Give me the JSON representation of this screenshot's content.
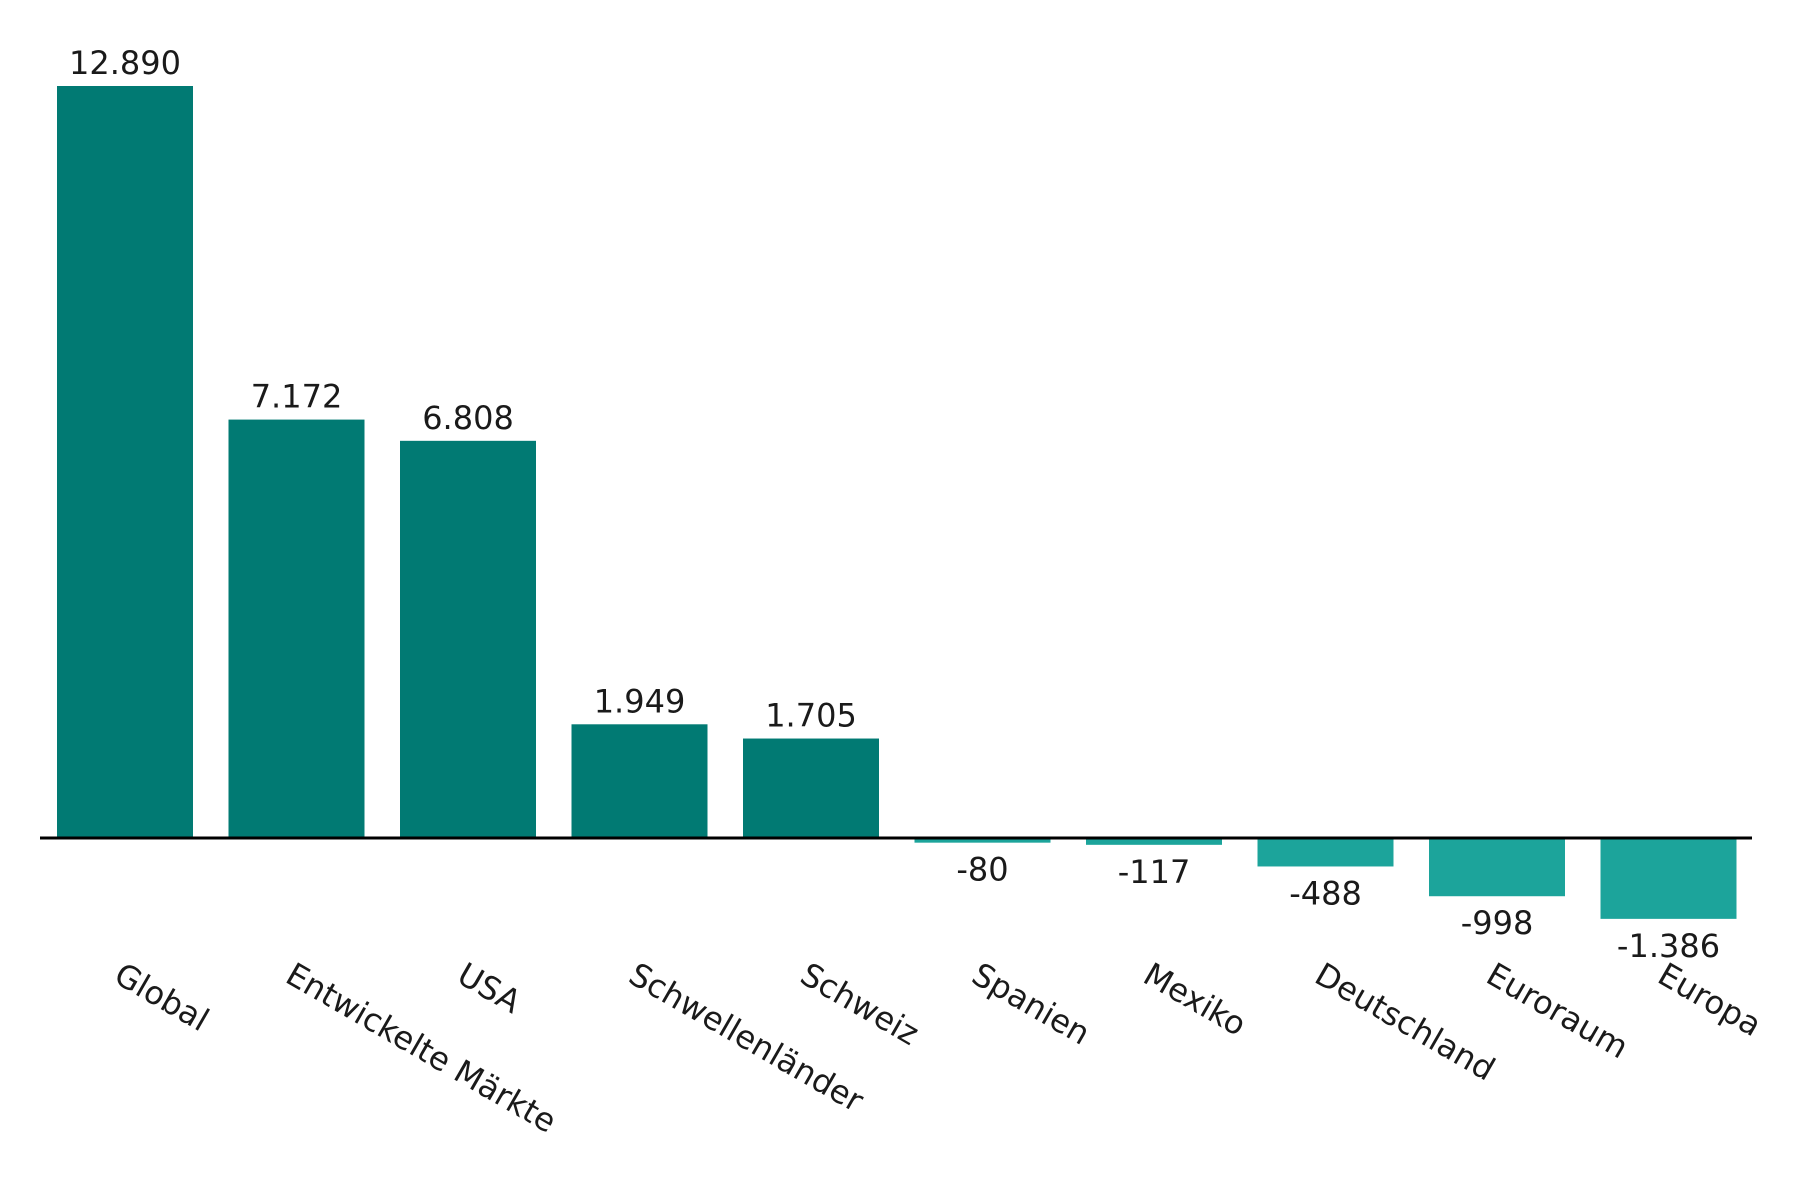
{
  "chart_data": {
    "type": "bar",
    "categories": [
      "Global",
      "Entwickelte Märkte",
      "USA",
      "Schwellenländer",
      "Schweiz",
      "Spanien",
      "Mexiko",
      "Deutschland",
      "Euroraum",
      "Europa"
    ],
    "values": [
      12890,
      7172,
      6808,
      1949,
      1705,
      -80,
      -117,
      -488,
      -998,
      -1386
    ],
    "value_labels": [
      "12.890",
      "7.172",
      "6.808",
      "1.949",
      "1.705",
      "-80",
      "-117",
      "-488",
      "-998",
      "-1.386"
    ],
    "title": "",
    "xlabel": "",
    "ylabel": "",
    "ylim": [
      -1386,
      12890
    ],
    "grid": false,
    "legend": "none",
    "colors": {
      "positive": "#017a73",
      "negative": "#1ca49b",
      "axis": "#000000"
    }
  }
}
